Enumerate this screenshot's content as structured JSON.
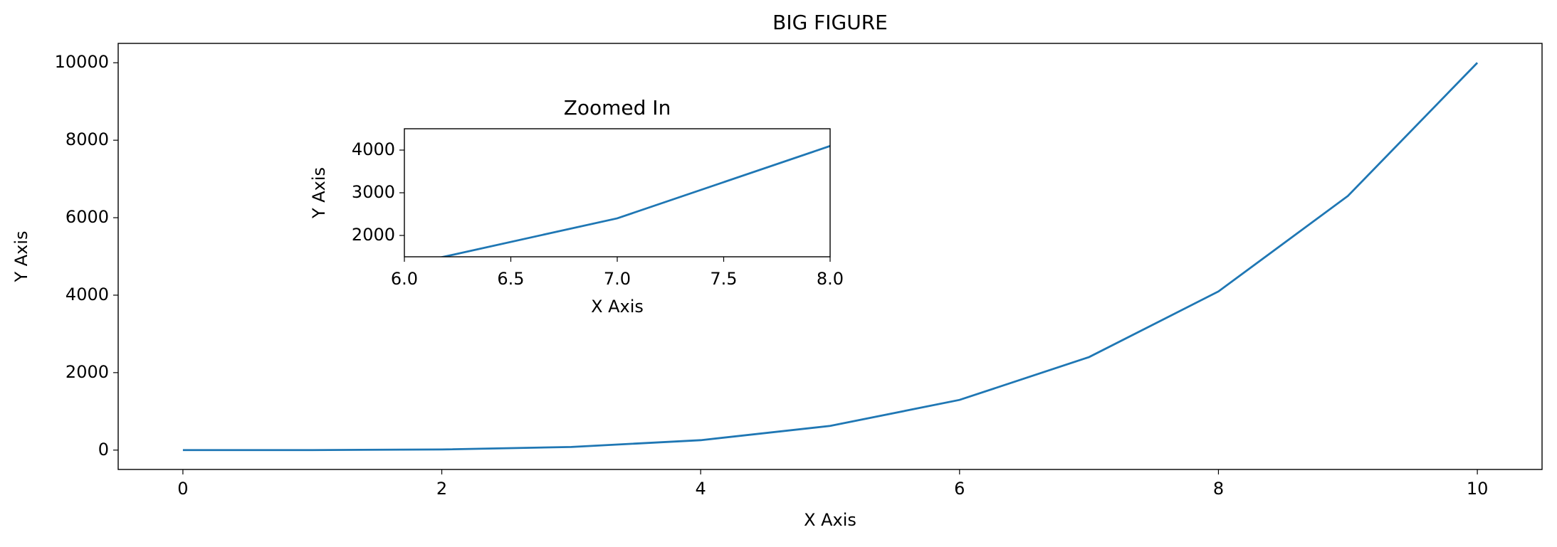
{
  "chart_data": [
    {
      "type": "line",
      "title": "BIG FIGURE",
      "x_label": "X Axis",
      "y_label": "Y Axis",
      "x": [
        0,
        1,
        2,
        3,
        4,
        5,
        6,
        7,
        8,
        9,
        10
      ],
      "series": [
        {
          "color": "#1f77b4",
          "values": [
            0,
            1,
            16,
            81,
            256,
            625,
            1296,
            2401,
            4096,
            6561,
            10000
          ]
        }
      ],
      "xlim": [
        -0.5,
        10.5
      ],
      "ylim": [
        -500,
        10500
      ],
      "xticks": [
        0,
        2,
        4,
        6,
        8,
        10
      ],
      "yticks": [
        0,
        2000,
        4000,
        6000,
        8000,
        10000
      ],
      "grid": false
    },
    {
      "type": "line",
      "title": "Zoomed In",
      "x_label": "X Axis",
      "y_label": "Y Axis",
      "x": [
        6,
        7,
        8
      ],
      "series": [
        {
          "color": "#1f77b4",
          "values": [
            1296,
            2401,
            4096
          ]
        }
      ],
      "xlim": [
        6,
        8
      ],
      "ylim": [
        1500,
        4500
      ],
      "xticks": [
        {
          "value": 6,
          "label": "6.0"
        },
        6.5,
        {
          "value": 7,
          "label": "7.0"
        },
        7.5,
        {
          "value": 8,
          "label": "8.0"
        }
      ],
      "yticks": [
        2000,
        3000,
        4000
      ],
      "grid": false
    }
  ]
}
